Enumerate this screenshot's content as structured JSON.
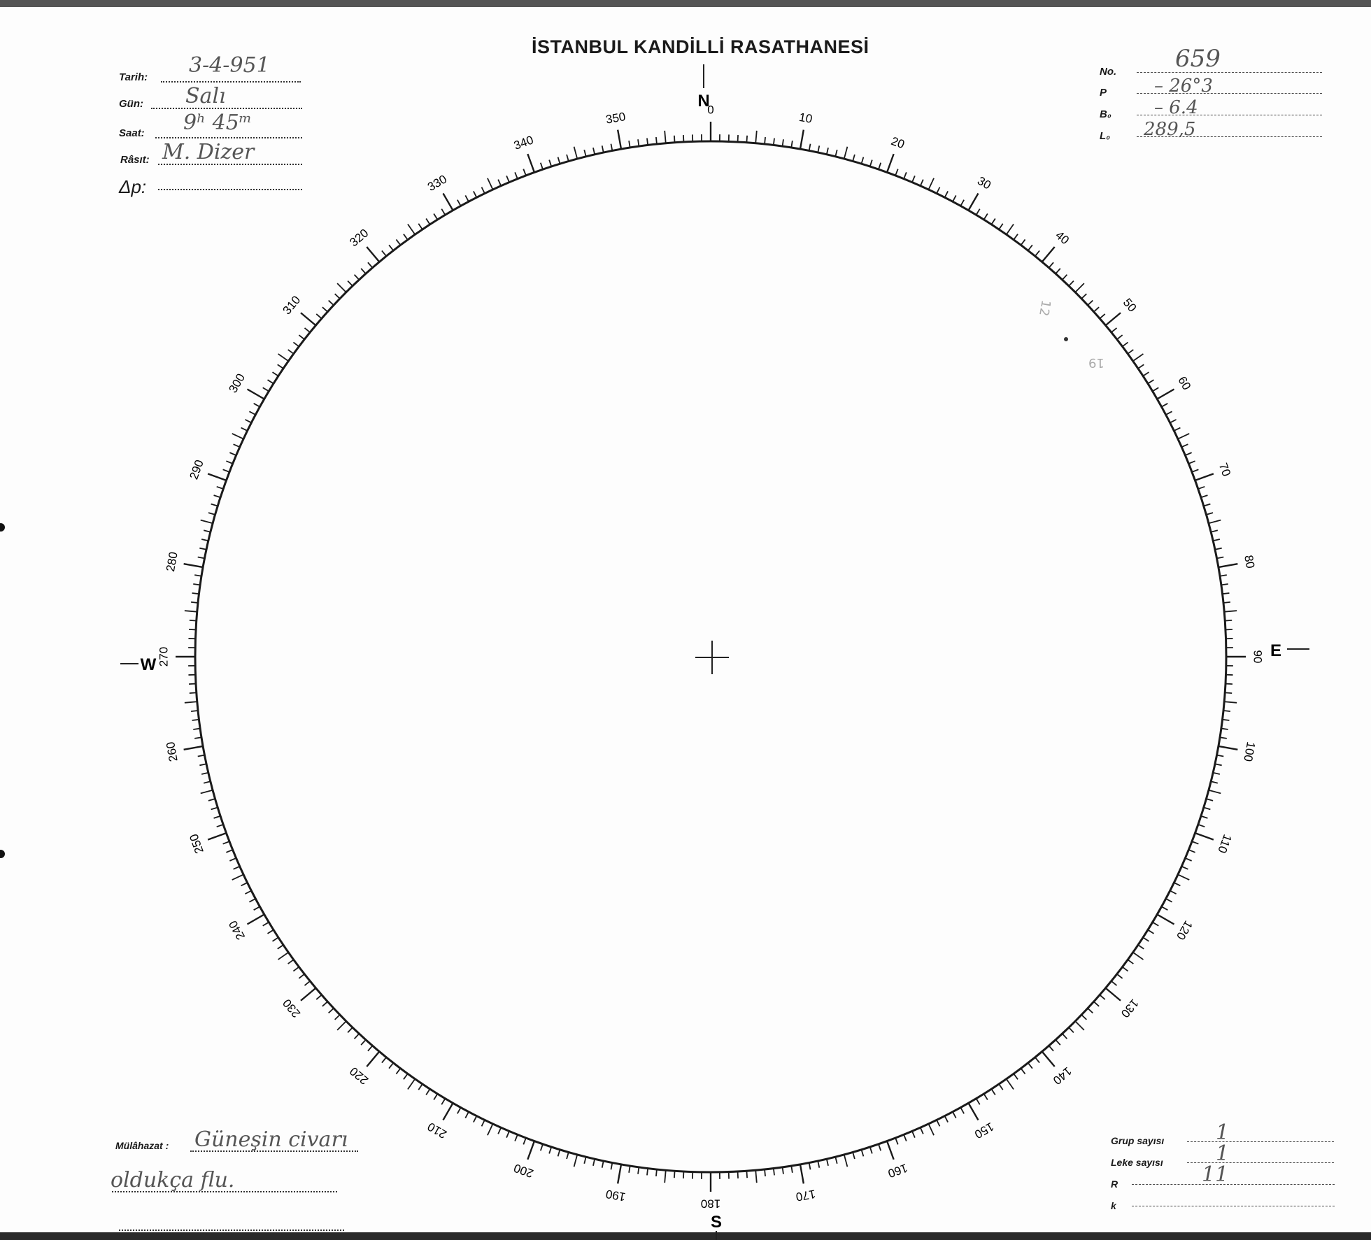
{
  "title": "İSTANBUL KANDİLLİ RASATHANESİ",
  "left_fields": [
    {
      "label": "Tarih:",
      "value": "3-4-951"
    },
    {
      "label": "Gün:",
      "value": "Salı"
    },
    {
      "label": "Saat:",
      "value": "9ʰ 45ᵐ"
    },
    {
      "label": "Râsıt:",
      "value": "M. Dizer"
    },
    {
      "label": "Δp:",
      "value": ""
    }
  ],
  "right_fields": [
    {
      "label": "No.",
      "value": "659"
    },
    {
      "label": "P",
      "value": "– 26°3"
    },
    {
      "label": "B₀",
      "value": "– 6.4"
    },
    {
      "label": "L₀",
      "value": "289,5"
    }
  ],
  "remarks": {
    "label": "Mülâhazat :",
    "line1": "Güneşin civarı",
    "line2": "oldukça flu."
  },
  "counts": [
    {
      "label": "Grup sayısı",
      "value": "1"
    },
    {
      "label": "Leke sayısı",
      "value": "1"
    },
    {
      "label": "R",
      "value": "11"
    },
    {
      "label": "k",
      "value": ""
    }
  ],
  "compass": {
    "north": "N",
    "south": "S",
    "east": "E",
    "west": "W"
  },
  "degree_labels": [
    "0",
    "10",
    "20",
    "30",
    "40",
    "50",
    "60",
    "70",
    "80",
    "90",
    "100",
    "110",
    "120",
    "130",
    "140",
    "150",
    "160",
    "170",
    "180",
    "190",
    "200",
    "210",
    "220",
    "230",
    "240",
    "250",
    "260",
    "270",
    "280",
    "290",
    "300",
    "310",
    "320",
    "330",
    "340",
    "350"
  ],
  "pencil_notes": {
    "group_number": "12",
    "spot_label": "19"
  },
  "colors": {
    "ink": "#1a1a1a",
    "handwriting": "#555555",
    "pencil": "#aaaaaa"
  }
}
